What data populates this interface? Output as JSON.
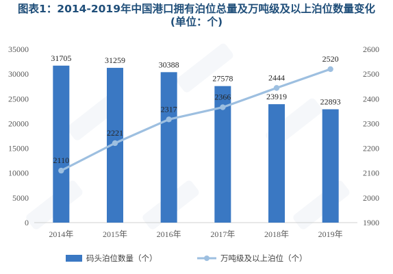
{
  "chart_data": {
    "type": "bar+line",
    "title": "图表1：2014-2019年中国港口拥有泊位总量及万吨级及以上泊位数量变化",
    "subtitle": "(单位：个)",
    "categories": [
      "2014年",
      "2015年",
      "2016年",
      "2017年",
      "2018年",
      "2019年"
    ],
    "series": [
      {
        "name": "码头泊位数量（个）",
        "type": "bar",
        "axis": "left",
        "color": "#3a78c3",
        "values": [
          31705,
          31259,
          30388,
          27578,
          23919,
          22893
        ]
      },
      {
        "name": "万吨级及以上泊位（个）",
        "type": "line",
        "axis": "right",
        "color": "#9dbfe0",
        "values": [
          2110,
          2221,
          2317,
          2366,
          2444,
          2520
        ]
      }
    ],
    "y_left": {
      "min": 0,
      "max": 35000,
      "step": 5000,
      "ticks": [
        "0",
        "5000",
        "10000",
        "15000",
        "20000",
        "25000",
        "30000",
        "35000"
      ]
    },
    "y_right": {
      "min": 1900,
      "max": 2600,
      "step": 100,
      "ticks": [
        "1900",
        "2000",
        "2100",
        "2200",
        "2300",
        "2400",
        "2500",
        "2600"
      ]
    },
    "grid": false,
    "legend_position": "bottom"
  }
}
